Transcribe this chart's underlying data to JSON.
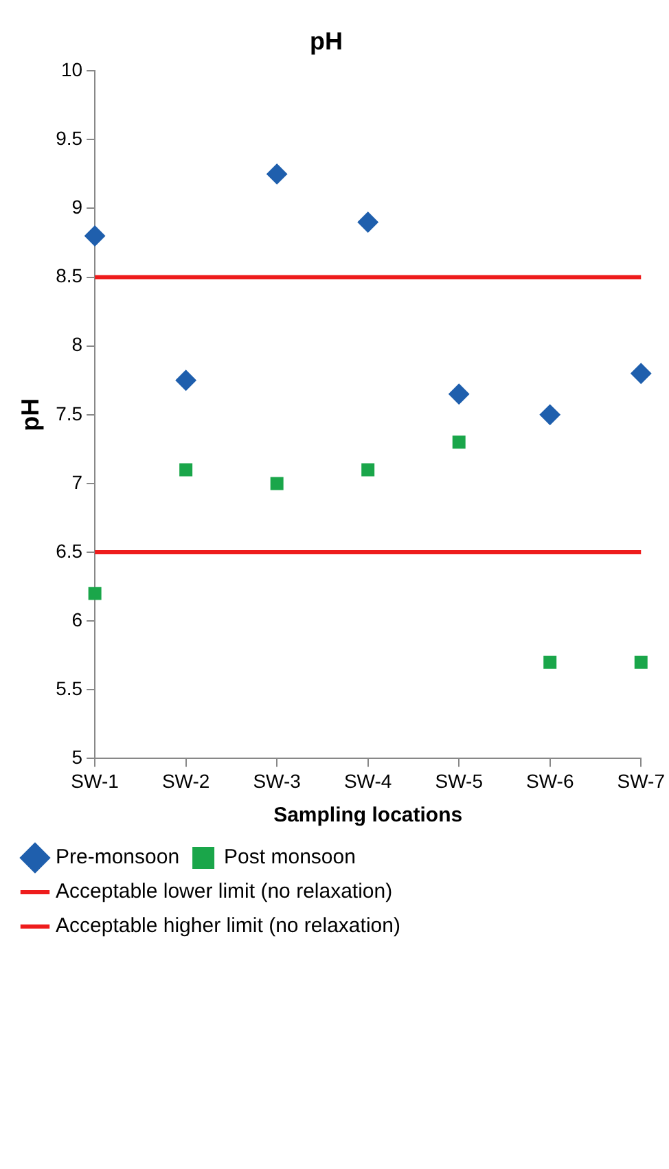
{
  "chart_data": {
    "type": "scatter",
    "title": "pH",
    "xlabel": "Sampling locations",
    "ylabel": "pH",
    "categories": [
      "SW-1",
      "SW-2",
      "SW-3",
      "SW-4",
      "SW-5",
      "SW-6",
      "SW-7"
    ],
    "ylim": [
      5,
      10
    ],
    "yticks": [
      5,
      5.5,
      6,
      6.5,
      7,
      7.5,
      8,
      8.5,
      9,
      9.5,
      10
    ],
    "grid": false,
    "legend": "bottom",
    "series": [
      {
        "name": "Pre-monsoon",
        "color": "#1f5fad",
        "marker": "diamond",
        "values": [
          8.8,
          7.75,
          9.25,
          8.9,
          7.65,
          7.5,
          7.8
        ]
      },
      {
        "name": "Post monsoon",
        "color": "#1aa64a",
        "marker": "square",
        "values": [
          6.2,
          7.1,
          7.0,
          7.1,
          7.3,
          5.7,
          5.7
        ]
      },
      {
        "name": "Acceptable lower limit (no relaxation)",
        "type": "line",
        "color": "#ee1c1c",
        "marker": "none",
        "values": [
          6.5,
          6.5,
          6.5,
          6.5,
          6.5,
          6.5,
          6.5
        ]
      },
      {
        "name": "Acceptable higher limit (no relaxation)",
        "type": "line",
        "color": "#ee1c1c",
        "marker": "none",
        "values": [
          8.5,
          8.5,
          8.5,
          8.5,
          8.5,
          8.5,
          8.5
        ]
      }
    ]
  }
}
